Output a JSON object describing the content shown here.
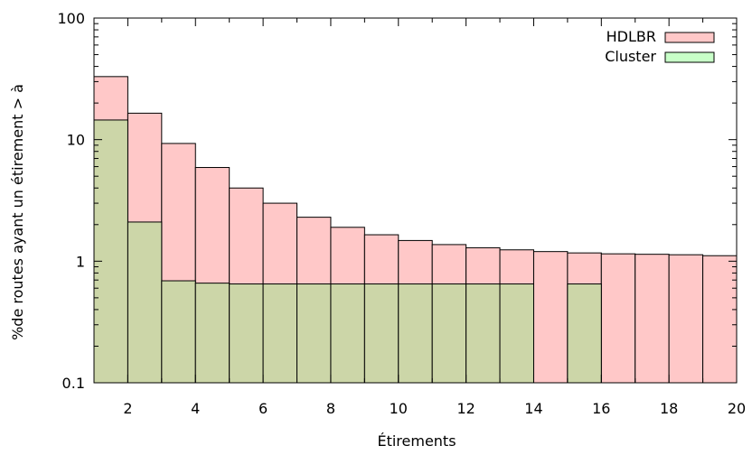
{
  "chart_data": {
    "type": "bar",
    "title": "",
    "xlabel": "Étirements",
    "ylabel": "%de routes ayant un étirement > à",
    "y_scale": "log",
    "ylim": [
      0.1,
      100
    ],
    "xlim": [
      1,
      20
    ],
    "grid": false,
    "legend_position": "top-right",
    "x_ticks": [
      "2",
      "4",
      "6",
      "8",
      "10",
      "12",
      "14",
      "16",
      "18",
      "20"
    ],
    "y_ticks": [
      "0.1",
      "1",
      "10",
      "100"
    ],
    "bin_edges": [
      1,
      2,
      3,
      4,
      5,
      6,
      7,
      8,
      9,
      10,
      11,
      12,
      13,
      14,
      15,
      16,
      17,
      18,
      19,
      20
    ],
    "series": [
      {
        "name": "HDLBR",
        "color": "#ffc8c8",
        "values": [
          33,
          16.5,
          9.3,
          5.9,
          4.0,
          3.0,
          2.3,
          1.9,
          1.65,
          1.48,
          1.37,
          1.29,
          1.24,
          1.2,
          1.17,
          1.15,
          1.14,
          1.13,
          1.11
        ]
      },
      {
        "name": "Cluster",
        "color": "#c8ffc8",
        "values": [
          14.5,
          2.1,
          0.69,
          0.66,
          0.65,
          0.65,
          0.65,
          0.65,
          0.65,
          0.65,
          0.65,
          0.65,
          0.65,
          null,
          0.65,
          null,
          null,
          null,
          null
        ]
      }
    ],
    "overlap_color": "#ccd6a8"
  }
}
